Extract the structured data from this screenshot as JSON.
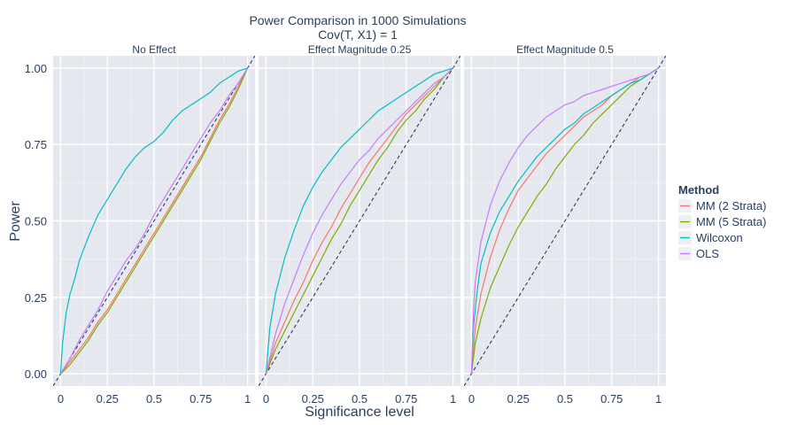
{
  "chart_data": {
    "type": "line",
    "title": "Power Comparison in 1000 Simulations",
    "subtitle": "Cov(T, X1) = 1",
    "xlabel": "Significance level",
    "ylabel": "Power",
    "xlim": [
      -0.04,
      1.04
    ],
    "ylim": [
      -0.04,
      1.04
    ],
    "x_ticks": [
      0,
      0.25,
      0.5,
      0.75,
      1
    ],
    "x_tick_labels": [
      "0",
      "0.25",
      "0.5",
      "0.75",
      "1"
    ],
    "y_ticks": [
      0,
      0.25,
      0.5,
      0.75,
      1
    ],
    "y_tick_labels": [
      "0.00",
      "0.25",
      "0.50",
      "0.75",
      "1.00"
    ],
    "grid": true,
    "reference_line": "y = x (dashed)",
    "legend": {
      "title": "Method",
      "placement": "right",
      "entries": [
        {
          "name": "MM (2 Strata)",
          "color": "#F8766D"
        },
        {
          "name": "MM (5 Strata)",
          "color": "#7CAE00"
        },
        {
          "name": "Wilcoxon",
          "color": "#00BFC4"
        },
        {
          "name": "OLS",
          "color": "#C77CFF"
        }
      ]
    },
    "colors": {
      "panel_bg": "#E5E8EE",
      "grid": "#FFFFFF",
      "reference": "#2A3F5F",
      "text": "#2A3F5F"
    },
    "panels": [
      {
        "label": "No Effect",
        "series": [
          {
            "name": "MM (2 Strata)",
            "color": "#F8766D",
            "x": [
              0,
              0.05,
              0.1,
              0.15,
              0.2,
              0.25,
              0.3,
              0.35,
              0.4,
              0.45,
              0.5,
              0.55,
              0.6,
              0.65,
              0.7,
              0.75,
              0.8,
              0.85,
              0.9,
              0.95,
              1
            ],
            "y": [
              0,
              0.04,
              0.08,
              0.12,
              0.17,
              0.21,
              0.26,
              0.31,
              0.36,
              0.41,
              0.46,
              0.51,
              0.56,
              0.61,
              0.66,
              0.71,
              0.77,
              0.83,
              0.88,
              0.94,
              1
            ]
          },
          {
            "name": "MM (5 Strata)",
            "color": "#7CAE00",
            "x": [
              0,
              0.05,
              0.1,
              0.15,
              0.2,
              0.25,
              0.3,
              0.35,
              0.4,
              0.45,
              0.5,
              0.55,
              0.6,
              0.65,
              0.7,
              0.75,
              0.8,
              0.85,
              0.9,
              0.95,
              1
            ],
            "y": [
              0,
              0.03,
              0.07,
              0.11,
              0.16,
              0.2,
              0.25,
              0.3,
              0.35,
              0.4,
              0.45,
              0.5,
              0.55,
              0.6,
              0.65,
              0.7,
              0.76,
              0.82,
              0.87,
              0.93,
              1
            ]
          },
          {
            "name": "Wilcoxon",
            "color": "#00BFC4",
            "x": [
              0,
              0.01,
              0.03,
              0.05,
              0.08,
              0.1,
              0.15,
              0.2,
              0.25,
              0.3,
              0.35,
              0.4,
              0.45,
              0.5,
              0.55,
              0.6,
              0.65,
              0.7,
              0.75,
              0.8,
              0.85,
              0.9,
              0.95,
              1
            ],
            "y": [
              0,
              0.1,
              0.2,
              0.26,
              0.32,
              0.37,
              0.45,
              0.52,
              0.57,
              0.62,
              0.67,
              0.71,
              0.74,
              0.76,
              0.79,
              0.83,
              0.86,
              0.88,
              0.9,
              0.92,
              0.95,
              0.97,
              0.99,
              1
            ]
          },
          {
            "name": "OLS",
            "color": "#C77CFF",
            "x": [
              0,
              0.05,
              0.1,
              0.15,
              0.2,
              0.25,
              0.3,
              0.35,
              0.4,
              0.45,
              0.5,
              0.55,
              0.6,
              0.65,
              0.7,
              0.75,
              0.8,
              0.85,
              0.9,
              0.95,
              1
            ],
            "y": [
              0,
              0.05,
              0.11,
              0.16,
              0.21,
              0.27,
              0.32,
              0.37,
              0.41,
              0.46,
              0.52,
              0.57,
              0.62,
              0.67,
              0.72,
              0.77,
              0.82,
              0.86,
              0.91,
              0.95,
              1
            ]
          }
        ]
      },
      {
        "label": "Effect Magnitude 0.25",
        "series": [
          {
            "name": "MM (2 Strata)",
            "color": "#F8766D",
            "x": [
              0,
              0.05,
              0.1,
              0.15,
              0.2,
              0.25,
              0.3,
              0.35,
              0.4,
              0.45,
              0.5,
              0.55,
              0.6,
              0.65,
              0.7,
              0.75,
              0.8,
              0.85,
              0.9,
              0.95,
              1
            ],
            "y": [
              0,
              0.1,
              0.17,
              0.24,
              0.3,
              0.37,
              0.43,
              0.48,
              0.54,
              0.59,
              0.64,
              0.69,
              0.73,
              0.77,
              0.81,
              0.85,
              0.88,
              0.91,
              0.94,
              0.97,
              1
            ]
          },
          {
            "name": "MM (5 Strata)",
            "color": "#7CAE00",
            "x": [
              0,
              0.05,
              0.1,
              0.15,
              0.2,
              0.25,
              0.3,
              0.35,
              0.4,
              0.45,
              0.5,
              0.55,
              0.6,
              0.65,
              0.7,
              0.75,
              0.8,
              0.85,
              0.9,
              0.95,
              1
            ],
            "y": [
              0,
              0.08,
              0.14,
              0.2,
              0.26,
              0.32,
              0.38,
              0.44,
              0.49,
              0.55,
              0.6,
              0.65,
              0.7,
              0.74,
              0.79,
              0.83,
              0.86,
              0.9,
              0.93,
              0.97,
              1
            ]
          },
          {
            "name": "Wilcoxon",
            "color": "#00BFC4",
            "x": [
              0,
              0.02,
              0.05,
              0.1,
              0.15,
              0.2,
              0.25,
              0.3,
              0.35,
              0.4,
              0.45,
              0.5,
              0.55,
              0.6,
              0.65,
              0.7,
              0.75,
              0.8,
              0.85,
              0.9,
              0.95,
              1
            ],
            "y": [
              0,
              0.15,
              0.26,
              0.38,
              0.47,
              0.55,
              0.61,
              0.66,
              0.7,
              0.74,
              0.77,
              0.8,
              0.83,
              0.86,
              0.88,
              0.9,
              0.92,
              0.94,
              0.96,
              0.98,
              0.99,
              1
            ]
          },
          {
            "name": "OLS",
            "color": "#C77CFF",
            "x": [
              0,
              0.05,
              0.1,
              0.15,
              0.2,
              0.25,
              0.3,
              0.35,
              0.4,
              0.45,
              0.5,
              0.55,
              0.6,
              0.65,
              0.7,
              0.75,
              0.8,
              0.85,
              0.9,
              0.95,
              1
            ],
            "y": [
              0,
              0.13,
              0.23,
              0.31,
              0.39,
              0.46,
              0.52,
              0.57,
              0.62,
              0.66,
              0.7,
              0.73,
              0.77,
              0.8,
              0.83,
              0.86,
              0.89,
              0.92,
              0.95,
              0.97,
              1
            ]
          }
        ]
      },
      {
        "label": "Effect Magnitude 0.5",
        "series": [
          {
            "name": "MM (2 Strata)",
            "color": "#F8766D",
            "x": [
              0,
              0.02,
              0.05,
              0.1,
              0.15,
              0.2,
              0.25,
              0.3,
              0.35,
              0.4,
              0.45,
              0.5,
              0.55,
              0.6,
              0.65,
              0.7,
              0.75,
              0.8,
              0.85,
              0.9,
              0.95,
              1
            ],
            "y": [
              0,
              0.15,
              0.26,
              0.38,
              0.47,
              0.54,
              0.6,
              0.64,
              0.68,
              0.72,
              0.75,
              0.78,
              0.81,
              0.84,
              0.86,
              0.88,
              0.91,
              0.93,
              0.95,
              0.97,
              0.98,
              1
            ]
          },
          {
            "name": "MM (5 Strata)",
            "color": "#7CAE00",
            "x": [
              0,
              0.02,
              0.05,
              0.1,
              0.15,
              0.2,
              0.25,
              0.3,
              0.35,
              0.4,
              0.45,
              0.5,
              0.55,
              0.6,
              0.65,
              0.7,
              0.75,
              0.8,
              0.85,
              0.9,
              0.95,
              1
            ],
            "y": [
              0,
              0.1,
              0.18,
              0.28,
              0.35,
              0.42,
              0.48,
              0.53,
              0.58,
              0.62,
              0.67,
              0.71,
              0.75,
              0.78,
              0.82,
              0.85,
              0.88,
              0.91,
              0.94,
              0.96,
              0.98,
              1
            ]
          },
          {
            "name": "Wilcoxon",
            "color": "#00BFC4",
            "x": [
              0,
              0.01,
              0.03,
              0.05,
              0.1,
              0.15,
              0.2,
              0.25,
              0.3,
              0.35,
              0.4,
              0.45,
              0.5,
              0.55,
              0.6,
              0.65,
              0.7,
              0.75,
              0.8,
              0.85,
              0.9,
              0.95,
              1
            ],
            "y": [
              0,
              0.15,
              0.27,
              0.36,
              0.46,
              0.53,
              0.58,
              0.63,
              0.67,
              0.71,
              0.74,
              0.77,
              0.8,
              0.82,
              0.85,
              0.87,
              0.89,
              0.91,
              0.93,
              0.95,
              0.96,
              0.98,
              1
            ]
          },
          {
            "name": "OLS",
            "color": "#C77CFF",
            "x": [
              0,
              0.01,
              0.02,
              0.05,
              0.1,
              0.15,
              0.2,
              0.25,
              0.3,
              0.35,
              0.4,
              0.45,
              0.5,
              0.55,
              0.6,
              0.65,
              0.7,
              0.75,
              0.8,
              0.85,
              0.9,
              0.95,
              1
            ],
            "y": [
              0,
              0.2,
              0.3,
              0.43,
              0.55,
              0.63,
              0.69,
              0.74,
              0.78,
              0.81,
              0.84,
              0.86,
              0.88,
              0.89,
              0.91,
              0.92,
              0.93,
              0.94,
              0.95,
              0.96,
              0.97,
              0.98,
              1
            ]
          }
        ]
      }
    ]
  }
}
